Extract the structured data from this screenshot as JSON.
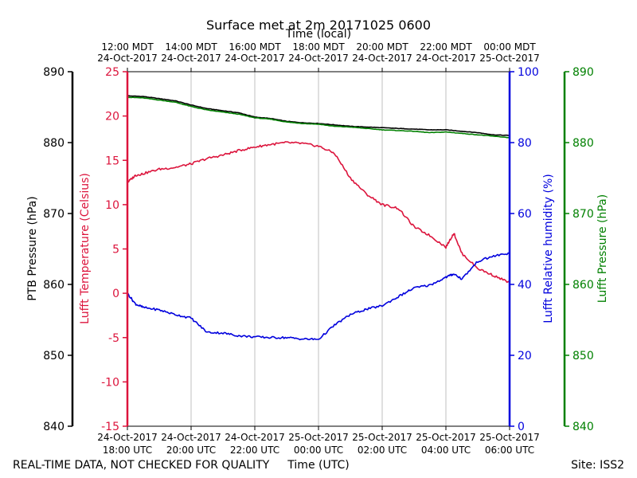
{
  "chart_data": {
    "type": "line",
    "title": "Surface met at 2m 20171025 0600",
    "top_xlabel": "Time (local)",
    "bottom_xlabel": "Time (UTC)",
    "footer_left": "REAL-TIME DATA, NOT CHECKED FOR QUALITY",
    "footer_right": "Site: ISS2",
    "x_range_hours": [
      0,
      12
    ],
    "x_ticks_hours": [
      0,
      2,
      4,
      6,
      8,
      10,
      12
    ],
    "top_ticks": [
      [
        "12:00 MDT",
        "24-Oct-2017"
      ],
      [
        "14:00 MDT",
        "24-Oct-2017"
      ],
      [
        "16:00 MDT",
        "24-Oct-2017"
      ],
      [
        "18:00 MDT",
        "24-Oct-2017"
      ],
      [
        "20:00 MDT",
        "24-Oct-2017"
      ],
      [
        "22:00 MDT",
        "24-Oct-2017"
      ],
      [
        "00:00 MDT",
        "25-Oct-2017"
      ]
    ],
    "bottom_ticks": [
      [
        "24-Oct-2017",
        "18:00 UTC"
      ],
      [
        "24-Oct-2017",
        "20:00 UTC"
      ],
      [
        "24-Oct-2017",
        "22:00 UTC"
      ],
      [
        "25-Oct-2017",
        "00:00 UTC"
      ],
      [
        "25-Oct-2017",
        "02:00 UTC"
      ],
      [
        "25-Oct-2017",
        "04:00 UTC"
      ],
      [
        "25-Oct-2017",
        "06:00 UTC"
      ]
    ],
    "grid": "vertical",
    "axes": {
      "ptb_pressure": {
        "label": "PTB Pressure (hPa)",
        "range": [
          840,
          890
        ],
        "ticks": [
          840,
          850,
          860,
          870,
          880,
          890
        ],
        "color": "#000000",
        "side": "left-outer"
      },
      "temperature": {
        "label": "Lufft Temperature (Celsius)",
        "range": [
          -15,
          25
        ],
        "ticks": [
          -15,
          -10,
          -5,
          0,
          5,
          10,
          15,
          20,
          25
        ],
        "color": "#dc143c",
        "side": "left-inner"
      },
      "humidity": {
        "label": "Lufft Relative humidity (%)",
        "range": [
          0,
          100
        ],
        "ticks": [
          0,
          20,
          40,
          60,
          80,
          100
        ],
        "color": "#0000dd",
        "side": "right-inner"
      },
      "lufft_pressure": {
        "label": "Lufft Pressure (hPa)",
        "range": [
          840,
          890
        ],
        "ticks": [
          840,
          850,
          860,
          870,
          880,
          890
        ],
        "color": "#008000",
        "side": "right-outer"
      }
    },
    "series": [
      {
        "name": "PTB Pressure",
        "axis": "ptb_pressure",
        "color": "#000000",
        "points": [
          [
            0,
            886.6
          ],
          [
            0.5,
            886.5
          ],
          [
            1,
            886.2
          ],
          [
            1.5,
            885.9
          ],
          [
            2,
            885.3
          ],
          [
            2.5,
            884.8
          ],
          [
            3,
            884.5
          ],
          [
            3.5,
            884.2
          ],
          [
            4,
            883.6
          ],
          [
            4.5,
            883.4
          ],
          [
            5,
            883.0
          ],
          [
            5.5,
            882.8
          ],
          [
            6,
            882.7
          ],
          [
            6.5,
            882.5
          ],
          [
            7,
            882.3
          ],
          [
            7.5,
            882.2
          ],
          [
            8,
            882.1
          ],
          [
            8.5,
            882.0
          ],
          [
            9,
            881.9
          ],
          [
            9.5,
            881.8
          ],
          [
            10,
            881.8
          ],
          [
            10.5,
            881.6
          ],
          [
            11,
            881.4
          ],
          [
            11.5,
            881.1
          ],
          [
            12,
            881.0
          ]
        ]
      },
      {
        "name": "Lufft Pressure",
        "axis": "lufft_pressure",
        "color": "#008000",
        "points": [
          [
            0,
            886.4
          ],
          [
            0.5,
            886.3
          ],
          [
            1,
            886.0
          ],
          [
            1.5,
            885.7
          ],
          [
            2,
            885.1
          ],
          [
            2.5,
            884.6
          ],
          [
            3,
            884.3
          ],
          [
            3.5,
            884.0
          ],
          [
            4,
            883.5
          ],
          [
            4.5,
            883.3
          ],
          [
            5,
            882.9
          ],
          [
            5.5,
            882.7
          ],
          [
            6,
            882.6
          ],
          [
            6.5,
            882.3
          ],
          [
            7,
            882.2
          ],
          [
            7.5,
            882.0
          ],
          [
            8,
            881.8
          ],
          [
            8.5,
            881.7
          ],
          [
            9,
            881.6
          ],
          [
            9.5,
            881.4
          ],
          [
            10,
            881.5
          ],
          [
            10.5,
            881.3
          ],
          [
            11,
            881.1
          ],
          [
            11.5,
            880.9
          ],
          [
            12,
            880.7
          ]
        ]
      },
      {
        "name": "Lufft Temperature",
        "axis": "temperature",
        "color": "#dc143c",
        "points": [
          [
            0,
            12.5
          ],
          [
            0.25,
            13.3
          ],
          [
            0.5,
            13.5
          ],
          [
            1,
            14.0
          ],
          [
            1.5,
            14.2
          ],
          [
            2,
            14.6
          ],
          [
            2.5,
            15.2
          ],
          [
            3,
            15.6
          ],
          [
            3.5,
            16.1
          ],
          [
            4,
            16.5
          ],
          [
            4.5,
            16.8
          ],
          [
            5,
            17.0
          ],
          [
            5.5,
            16.9
          ],
          [
            6,
            16.6
          ],
          [
            6.5,
            15.8
          ],
          [
            7,
            13.0
          ],
          [
            7.5,
            11.2
          ],
          [
            8,
            10.0
          ],
          [
            8.5,
            9.6
          ],
          [
            9,
            7.5
          ],
          [
            9.5,
            6.5
          ],
          [
            10,
            5.2
          ],
          [
            10.25,
            6.8
          ],
          [
            10.5,
            4.5
          ],
          [
            11,
            2.8
          ],
          [
            11.5,
            2.0
          ],
          [
            12,
            1.2
          ]
        ]
      },
      {
        "name": "Lufft Relative humidity",
        "axis": "humidity",
        "color": "#0000dd",
        "points": [
          [
            0,
            37.5
          ],
          [
            0.25,
            34.5
          ],
          [
            0.5,
            33.5
          ],
          [
            1,
            32.8
          ],
          [
            1.5,
            31.5
          ],
          [
            2,
            30.5
          ],
          [
            2.5,
            26.5
          ],
          [
            3,
            26.3
          ],
          [
            3.5,
            25.5
          ],
          [
            4,
            25.2
          ],
          [
            4.5,
            25.0
          ],
          [
            5,
            25.0
          ],
          [
            5.5,
            24.6
          ],
          [
            6,
            24.5
          ],
          [
            6.5,
            28.5
          ],
          [
            7,
            31.5
          ],
          [
            7.5,
            33.0
          ],
          [
            8,
            34.0
          ],
          [
            8.5,
            36.5
          ],
          [
            9,
            39.0
          ],
          [
            9.5,
            39.8
          ],
          [
            10,
            42.0
          ],
          [
            10.25,
            43.0
          ],
          [
            10.5,
            41.5
          ],
          [
            11,
            46.5
          ],
          [
            11.5,
            48.0
          ],
          [
            12,
            48.8
          ]
        ]
      }
    ]
  }
}
